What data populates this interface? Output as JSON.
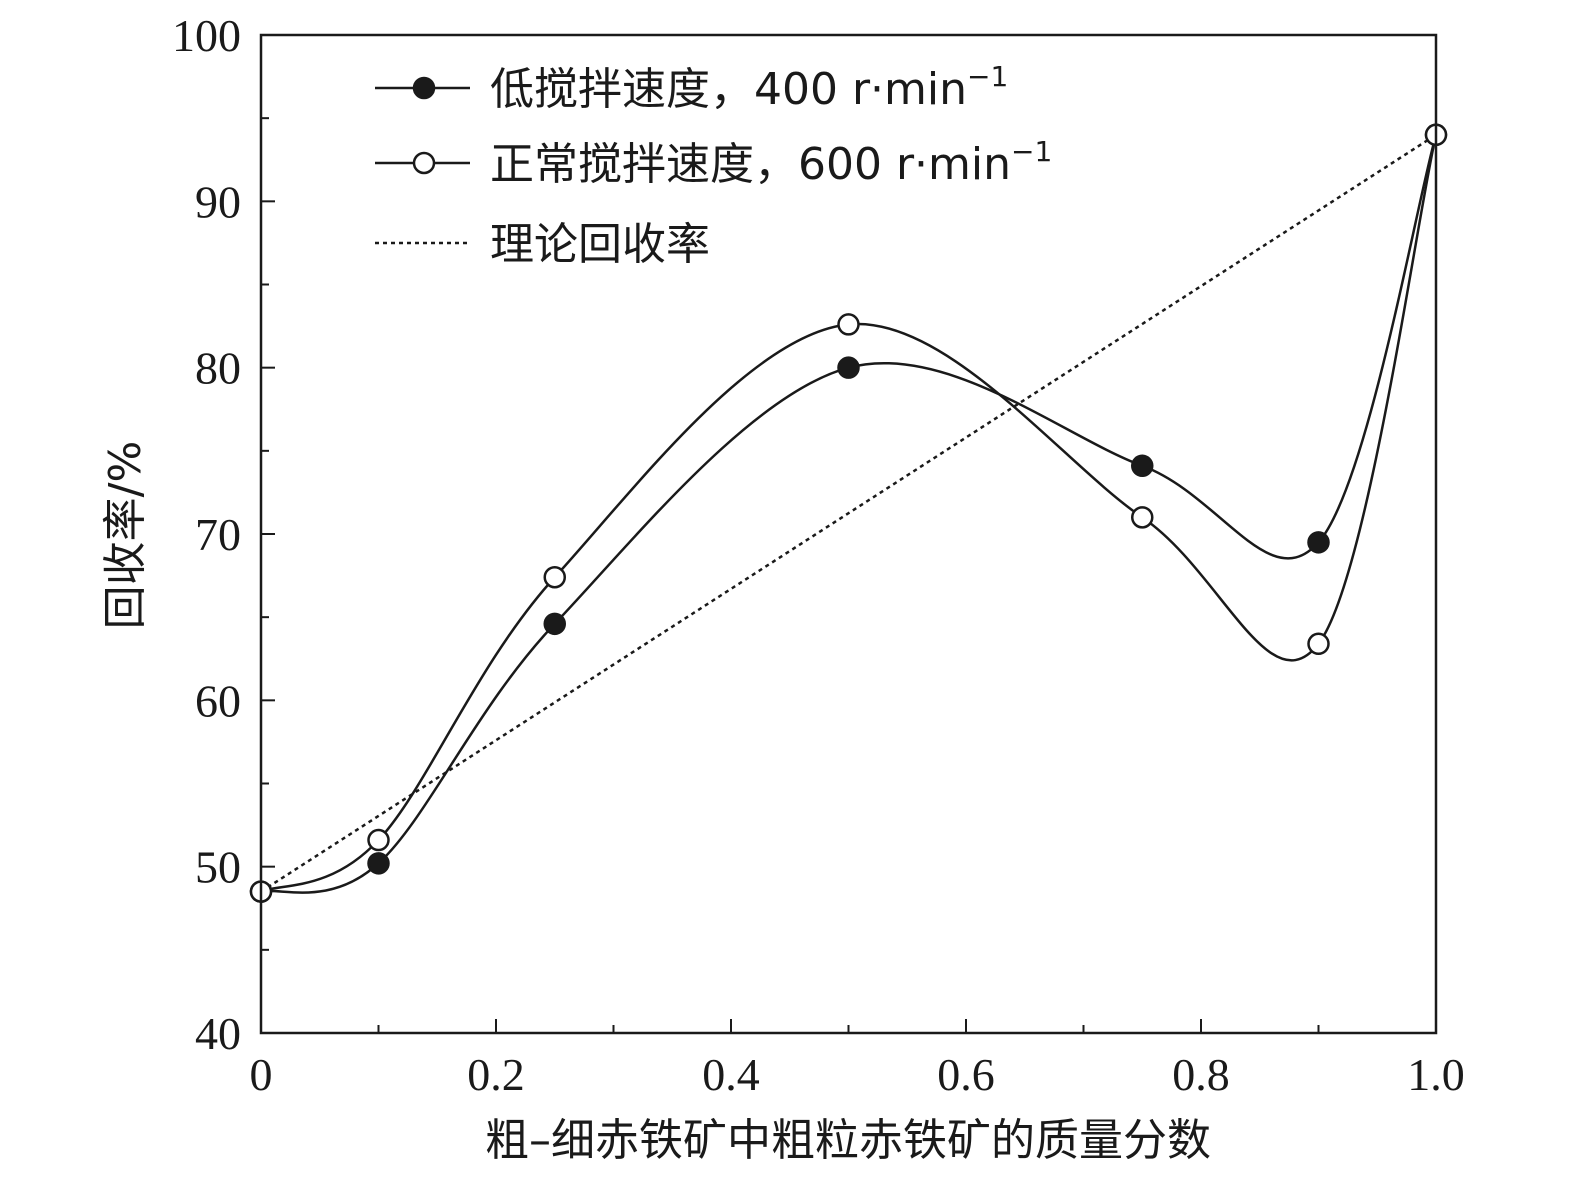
{
  "chart_data": {
    "type": "line",
    "xlabel": "粗–细赤铁矿中粗粒赤铁矿的质量分数",
    "ylabel": "回收率/%",
    "xlim": [
      0,
      1.0
    ],
    "ylim": [
      40,
      100
    ],
    "x_ticks": [
      0,
      0.2,
      0.4,
      0.6,
      0.8,
      1.0
    ],
    "x_tick_labels": [
      "0",
      "0.2",
      "0.4",
      "0.6",
      "0.8",
      "1.0"
    ],
    "y_ticks": [
      40,
      50,
      60,
      70,
      80,
      90,
      100
    ],
    "y_tick_labels": [
      "40",
      "50",
      "60",
      "70",
      "80",
      "90",
      "100"
    ],
    "legend_position": "top-left",
    "series": [
      {
        "name": "低搅拌速度，400 r·min",
        "name_main": "低搅拌速度，400 r·min",
        "name_sup": "−1",
        "marker": "filled-circle",
        "line": "solid",
        "x": [
          0,
          0.1,
          0.25,
          0.5,
          0.75,
          0.9,
          1.0
        ],
        "y": [
          48.5,
          50.2,
          64.6,
          80.0,
          74.1,
          69.5,
          94.0
        ]
      },
      {
        "name": "正常搅拌速度，600 r·min",
        "name_main": "正常搅拌速度，600 r·min",
        "name_sup": "−1",
        "marker": "open-circle",
        "line": "solid",
        "x": [
          0,
          0.1,
          0.25,
          0.5,
          0.75,
          0.9,
          1.0
        ],
        "y": [
          48.5,
          51.6,
          67.4,
          82.6,
          71.0,
          63.4,
          94.0
        ]
      },
      {
        "name": "理论回收率",
        "name_main": "理论回收率",
        "name_sup": "",
        "marker": "none",
        "line": "dotted",
        "x": [
          0,
          1.0
        ],
        "y": [
          48.5,
          94.0
        ]
      }
    ],
    "colors": {
      "ink": "#1a1a1a",
      "background": "#ffffff"
    }
  }
}
